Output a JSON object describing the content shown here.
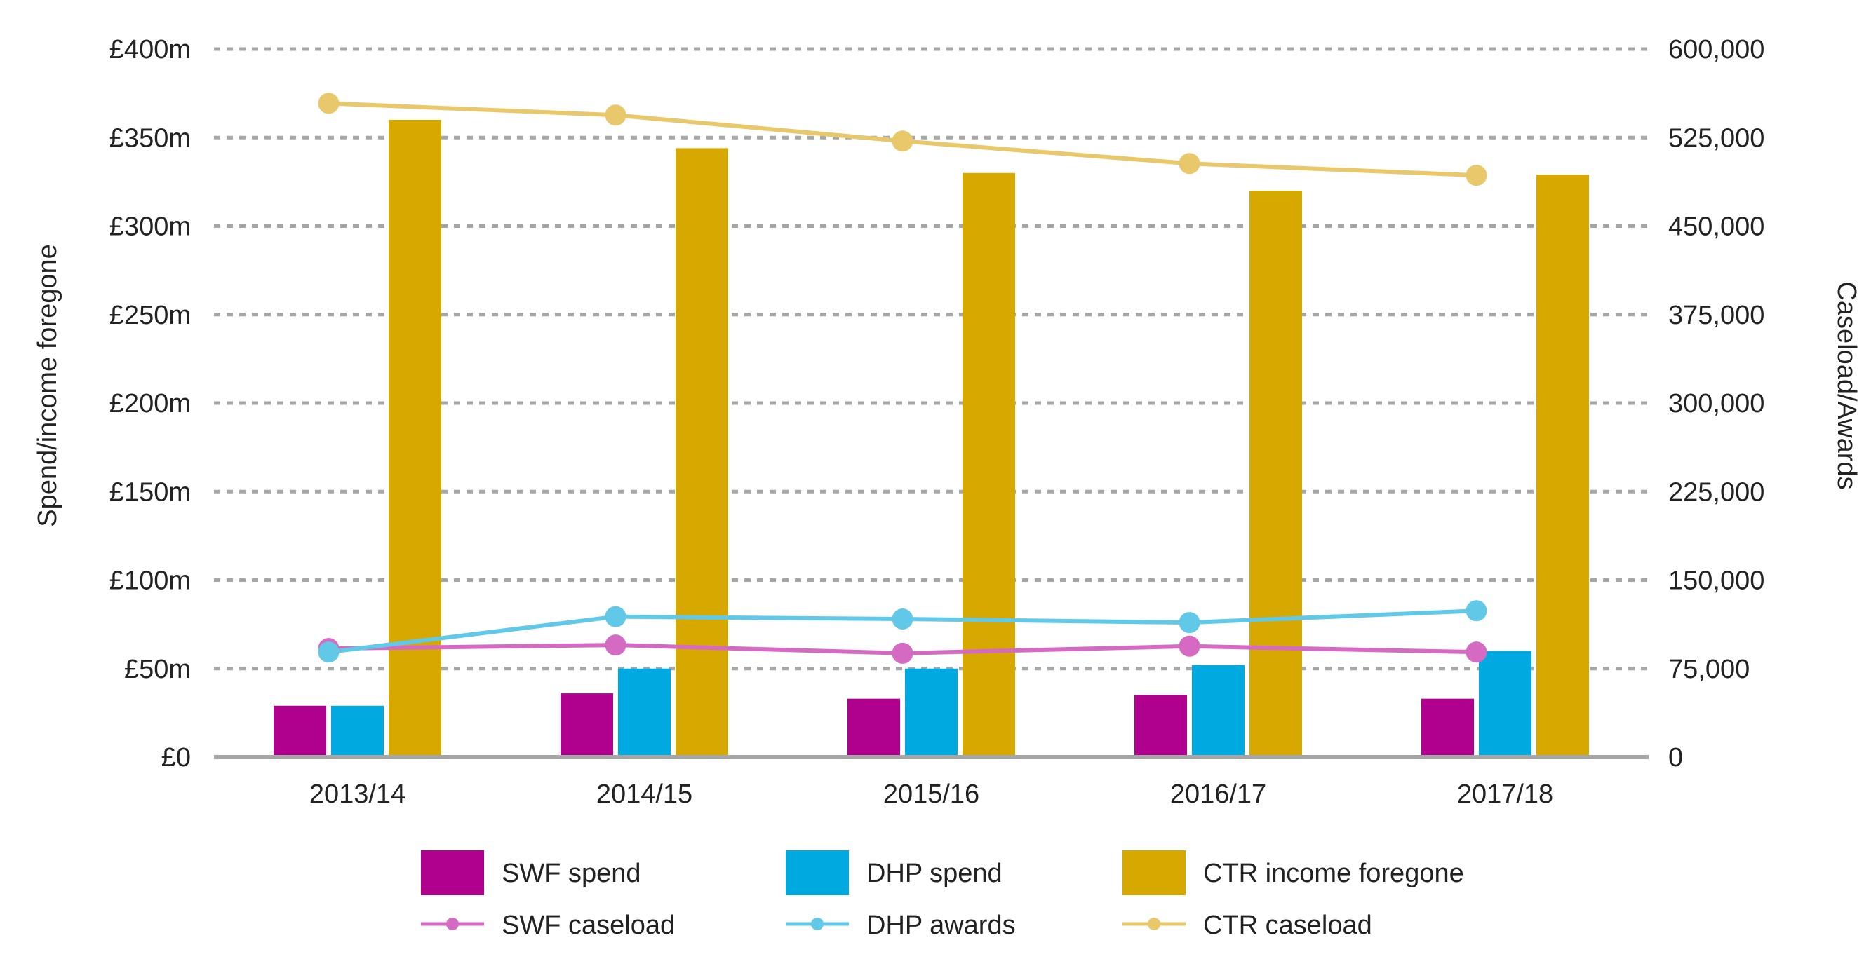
{
  "chart_data": {
    "type": "bar",
    "categories": [
      "2013/14",
      "2014/15",
      "2015/16",
      "2016/17",
      "2017/18"
    ],
    "title": "",
    "ylabel": "Spend/income foregone",
    "y2label": "Caseload/Awards",
    "ylim": [
      0,
      400
    ],
    "y2lim": [
      0,
      600000
    ],
    "y_ticks": [
      "£0",
      "£50m",
      "£100m",
      "£150m",
      "£200m",
      "£250m",
      "£300m",
      "£350m",
      "£400m"
    ],
    "y2_ticks": [
      "0",
      "75,000",
      "150,000",
      "225,000",
      "300,000",
      "375,000",
      "450,000",
      "525,000",
      "600,000"
    ],
    "grid": true,
    "legend_position": "bottom",
    "bar_series": [
      {
        "name": "SWF spend",
        "color": "#b0008e",
        "values": [
          29,
          36,
          33,
          35,
          33
        ]
      },
      {
        "name": "DHP spend",
        "color": "#00a9e0",
        "values": [
          29,
          50,
          50,
          52,
          60
        ]
      },
      {
        "name": "CTR income foregone",
        "color": "#d6a800",
        "values": [
          360,
          344,
          330,
          320,
          329
        ]
      }
    ],
    "line_series": [
      {
        "name": "SWF caseload",
        "color": "#d46ac2",
        "axis": "right",
        "values": [
          92000,
          95000,
          88000,
          94000,
          89000
        ]
      },
      {
        "name": "DHP awards",
        "color": "#62c8e8",
        "axis": "right",
        "values": [
          89000,
          119000,
          117000,
          114000,
          124000
        ]
      },
      {
        "name": "CTR caseload",
        "color": "#e8c86a",
        "axis": "right",
        "values": [
          554000,
          544000,
          522000,
          503000,
          493000
        ]
      }
    ]
  }
}
